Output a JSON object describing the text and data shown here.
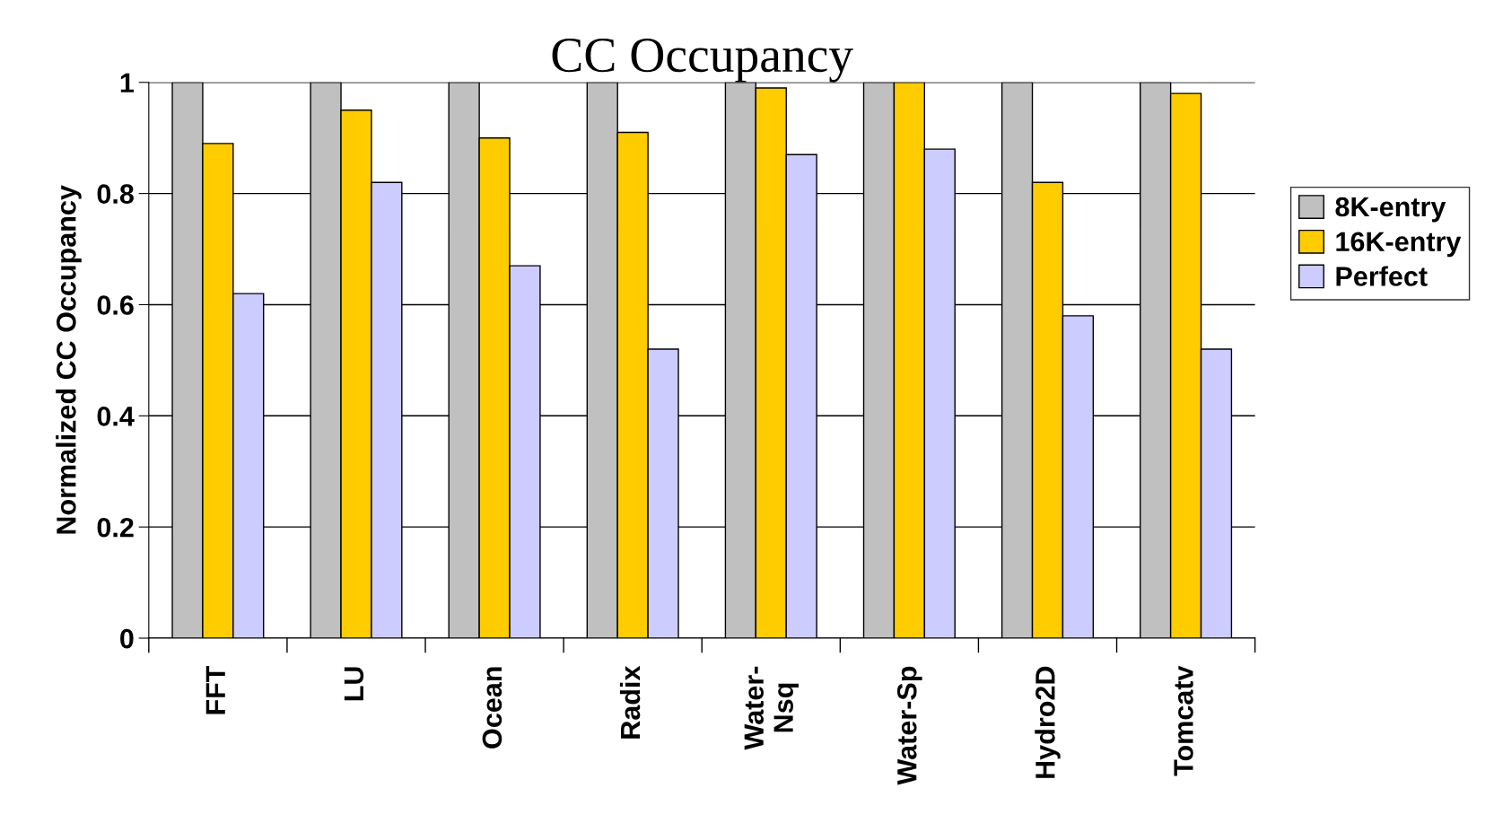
{
  "chart_data": {
    "type": "bar",
    "title": "CC Occupancy",
    "ylabel": "Normalized CC Occupancy",
    "categories": [
      "FFT",
      "LU",
      "Ocean",
      "Radix",
      "Water-\nNsq",
      "Water-Sp",
      "Hydro2D",
      "Tomcatv"
    ],
    "series": [
      {
        "name": "8K-entry",
        "color": "#c0c0c0",
        "values": [
          1,
          1,
          1,
          1,
          1,
          1,
          1,
          1
        ]
      },
      {
        "name": "16K-entry",
        "color": "#ffcc00",
        "values": [
          0.89,
          0.95,
          0.9,
          0.91,
          0.99,
          1,
          0.82,
          0.98
        ]
      },
      {
        "name": "Perfect",
        "color": "#ccccff",
        "values": [
          0.62,
          0.82,
          0.67,
          0.52,
          0.87,
          0.88,
          0.58,
          0.52
        ]
      }
    ],
    "ylim": [
      0,
      1
    ],
    "yticks": [
      0,
      0.2,
      0.4,
      0.6,
      0.8,
      1
    ],
    "grid": "y",
    "legend": "right"
  }
}
